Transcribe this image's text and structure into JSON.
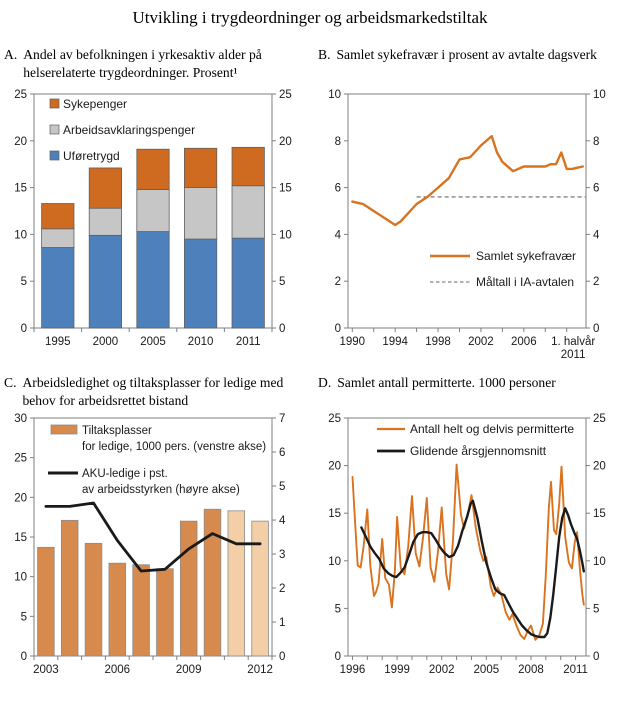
{
  "main_title": "Utvikling i trygdeordninger og arbeidsmarkedstiltak",
  "colors": {
    "orange": "#CF6B21",
    "gray": "#C6C6C6",
    "blue": "#4E80BC",
    "orange_line": "#D9731F",
    "bar_dark": "#D68A4D",
    "bar_light": "#F2CFA6",
    "black": "#1A1A1A",
    "dashed": "#666666",
    "axis": "#7F7F7F",
    "text": "#1A1A1A"
  },
  "chart_data": [
    {
      "id": "A",
      "panel_label": "A.",
      "title": "Andel av befolkningen i yrkesaktiv alder på helserelaterte trygdeordninger. Prosent¹",
      "type": "bar",
      "stacked": true,
      "categories": [
        "1995",
        "2000",
        "2005",
        "2010",
        "2011"
      ],
      "series": [
        {
          "name": "Uføretrygd",
          "color_key": "blue",
          "values": [
            8.6,
            9.9,
            10.3,
            9.5,
            9.6
          ]
        },
        {
          "name": "Arbeidsavklaringspenger",
          "color_key": "gray",
          "values": [
            2.0,
            2.9,
            4.5,
            5.5,
            5.6
          ]
        },
        {
          "name": "Sykepenger",
          "color_key": "orange",
          "values": [
            2.7,
            4.3,
            4.3,
            4.2,
            4.1
          ]
        }
      ],
      "legend": [
        {
          "label": "Sykepenger",
          "color_key": "orange"
        },
        {
          "label": "Arbeidsavklaringspenger",
          "color_key": "gray"
        },
        {
          "label": "Uføretrygd",
          "color_key": "blue"
        }
      ],
      "ylim": [
        0,
        25
      ],
      "yticks": [
        0,
        5,
        10,
        15,
        20,
        25
      ],
      "grid": false,
      "legend_position": "top-left-inside"
    },
    {
      "id": "B",
      "panel_label": "B.",
      "title": "Samlet sykefravær i prosent av avtalte dagsverk",
      "type": "line",
      "xlim": [
        1989.6,
        2011.8
      ],
      "ylim": [
        0,
        10
      ],
      "yticks": [
        0,
        2,
        4,
        6,
        8,
        10
      ],
      "xticks_minor": [
        1990,
        1992,
        1994,
        1996,
        1998,
        2000,
        2002,
        2004,
        2006,
        2008,
        2010
      ],
      "xtick_labels": [
        {
          "x": 1990,
          "lines": [
            "1990"
          ]
        },
        {
          "x": 1994,
          "lines": [
            "1994"
          ]
        },
        {
          "x": 1998,
          "lines": [
            "1998"
          ]
        },
        {
          "x": 2002,
          "lines": [
            "2002"
          ]
        },
        {
          "x": 2006,
          "lines": [
            "2006"
          ]
        },
        {
          "x": 2010.6,
          "lines": [
            "1. halvår",
            "2011"
          ]
        }
      ],
      "series": [
        {
          "name": "Samlet sykefravær",
          "color_key": "orange_line",
          "style": "solid",
          "points": [
            [
              1990,
              5.4
            ],
            [
              1990.5,
              5.35
            ],
            [
              1991,
              5.3
            ],
            [
              1992,
              5.0
            ],
            [
              1993,
              4.7
            ],
            [
              1994,
              4.4
            ],
            [
              1994.5,
              4.55
            ],
            [
              1995,
              4.8
            ],
            [
              1996,
              5.3
            ],
            [
              1997,
              5.6
            ],
            [
              1998,
              6.0
            ],
            [
              1999,
              6.4
            ],
            [
              2000,
              7.2
            ],
            [
              2000.5,
              7.25
            ],
            [
              2001,
              7.3
            ],
            [
              2002,
              7.8
            ],
            [
              2003,
              8.2
            ],
            [
              2003.5,
              7.5
            ],
            [
              2004,
              7.1
            ],
            [
              2005,
              6.7
            ],
            [
              2006,
              6.9
            ],
            [
              2007,
              6.9
            ],
            [
              2008,
              6.9
            ],
            [
              2008.5,
              7.0
            ],
            [
              2009,
              7.0
            ],
            [
              2009.5,
              7.5
            ],
            [
              2010,
              6.8
            ],
            [
              2010.5,
              6.8
            ],
            [
              2011,
              6.85
            ],
            [
              2011.5,
              6.9
            ]
          ]
        }
      ],
      "target_line": {
        "name": "Måltall i IA-avtalen",
        "value": 5.6,
        "x_start": 1996,
        "color_key": "dashed",
        "style": "dashed"
      },
      "grid": false,
      "legend_position": "center-inside"
    },
    {
      "id": "C",
      "panel_label": "C.",
      "title": "Arbeidsledighet og tiltaksplasser for ledige med behov for arbeidsrettet bistand",
      "type": "bar+line",
      "categories": [
        "2003",
        "2004",
        "2005",
        "2006",
        "2007",
        "2008",
        "2009",
        "2010",
        "2011",
        "2012"
      ],
      "bars": {
        "name": "Tiltaksplasser for ledige, 1000 pers. (venstre akse)",
        "legend_lines": [
          "Tiltaksplasser",
          "for ledige, 1000 pers. (venstre akse)"
        ],
        "values": [
          13.7,
          17.1,
          14.2,
          11.7,
          11.5,
          11.0,
          17.0,
          18.5,
          18.3,
          17.0
        ],
        "projection_from_index": 8
      },
      "line": {
        "name": "AKU-ledige i pst. av arbeidsstyrken (høyre akse)",
        "legend_lines": [
          "AKU-ledige i pst.",
          "av arbeidsstyrken (høyre akse)"
        ],
        "values": [
          4.4,
          4.4,
          4.5,
          3.4,
          2.5,
          2.55,
          3.15,
          3.6,
          3.3,
          3.3
        ]
      },
      "ylim_left": [
        0,
        30
      ],
      "yticks_left": [
        0,
        5,
        10,
        15,
        20,
        25,
        30
      ],
      "ylim_right": [
        0,
        7
      ],
      "yticks_right": [
        0,
        1,
        2,
        3,
        4,
        5,
        6,
        7
      ],
      "xtick_labels": [
        {
          "index": 0,
          "label": "2003"
        },
        {
          "index": 3,
          "label": "2006"
        },
        {
          "index": 6,
          "label": "2009"
        },
        {
          "index": 9,
          "label": "2012"
        }
      ],
      "grid": false,
      "legend_position": "top-left-inside"
    },
    {
      "id": "D",
      "panel_label": "D.",
      "title": "Samlet antall permitterte. 1000 personer",
      "type": "line",
      "xlim": [
        1995.7,
        2011.7
      ],
      "ylim": [
        0,
        25
      ],
      "yticks": [
        0,
        5,
        10,
        15,
        20,
        25
      ],
      "xticks_minor": [
        1996,
        1997,
        1998,
        1999,
        2000,
        2001,
        2002,
        2003,
        2004,
        2005,
        2006,
        2007,
        2008,
        2009,
        2010,
        2011
      ],
      "xtick_labels": [
        {
          "x": 1996,
          "lines": [
            "1996"
          ]
        },
        {
          "x": 1999,
          "lines": [
            "1999"
          ]
        },
        {
          "x": 2002,
          "lines": [
            "2002"
          ]
        },
        {
          "x": 2005,
          "lines": [
            "2005"
          ]
        },
        {
          "x": 2008,
          "lines": [
            "2008"
          ]
        },
        {
          "x": 2011,
          "lines": [
            "2011"
          ]
        }
      ],
      "series": [
        {
          "name": "Antall helt og delvis permitterte",
          "color_key": "orange_line",
          "style": "solid",
          "points": [
            [
              1996.0,
              18.8
            ],
            [
              1996.2,
              13.5
            ],
            [
              1996.35,
              9.5
            ],
            [
              1996.55,
              9.3
            ],
            [
              1996.75,
              11.5
            ],
            [
              1996.9,
              14.0
            ],
            [
              1997.0,
              15.4
            ],
            [
              1997.2,
              9.5
            ],
            [
              1997.45,
              6.3
            ],
            [
              1997.6,
              6.8
            ],
            [
              1997.75,
              7.6
            ],
            [
              1998.0,
              12.3
            ],
            [
              1998.2,
              8.2
            ],
            [
              1998.45,
              7.5
            ],
            [
              1998.65,
              5.1
            ],
            [
              1998.85,
              9.0
            ],
            [
              1999.0,
              14.6
            ],
            [
              1999.25,
              9.2
            ],
            [
              1999.5,
              8.6
            ],
            [
              1999.75,
              11.5
            ],
            [
              2000.0,
              16.8
            ],
            [
              2000.25,
              10.8
            ],
            [
              2000.5,
              9.4
            ],
            [
              2000.75,
              12.5
            ],
            [
              2001.0,
              16.6
            ],
            [
              2001.25,
              9.3
            ],
            [
              2001.5,
              7.8
            ],
            [
              2001.75,
              11.0
            ],
            [
              2002.0,
              15.6
            ],
            [
              2002.3,
              8.6
            ],
            [
              2002.5,
              7.0
            ],
            [
              2002.75,
              12.0
            ],
            [
              2003.0,
              20.1
            ],
            [
              2003.3,
              14.8
            ],
            [
              2003.5,
              13.4
            ],
            [
              2003.75,
              14.8
            ],
            [
              2004.0,
              16.9
            ],
            [
              2004.3,
              13.4
            ],
            [
              2004.6,
              11.0
            ],
            [
              2004.8,
              10.0
            ],
            [
              2005.0,
              10.4
            ],
            [
              2005.3,
              7.3
            ],
            [
              2005.5,
              6.3
            ],
            [
              2005.75,
              7.2
            ],
            [
              2006.0,
              6.5
            ],
            [
              2006.3,
              4.6
            ],
            [
              2006.55,
              3.8
            ],
            [
              2006.75,
              4.4
            ],
            [
              2007.0,
              3.3
            ],
            [
              2007.3,
              2.2
            ],
            [
              2007.55,
              1.8
            ],
            [
              2007.8,
              2.7
            ],
            [
              2008.0,
              3.2
            ],
            [
              2008.3,
              1.7
            ],
            [
              2008.55,
              2.1
            ],
            [
              2008.8,
              3.4
            ],
            [
              2009.0,
              8.5
            ],
            [
              2009.2,
              15.5
            ],
            [
              2009.35,
              18.3
            ],
            [
              2009.55,
              13.2
            ],
            [
              2009.7,
              12.8
            ],
            [
              2009.9,
              16.0
            ],
            [
              2010.05,
              19.9
            ],
            [
              2010.3,
              12.5
            ],
            [
              2010.55,
              9.8
            ],
            [
              2010.75,
              9.2
            ],
            [
              2010.95,
              12.0
            ],
            [
              2011.1,
              13.0
            ],
            [
              2011.3,
              9.0
            ],
            [
              2011.45,
              6.5
            ],
            [
              2011.55,
              5.4
            ]
          ]
        },
        {
          "name": "Glidende årsgjennomsnitt",
          "color_key": "black",
          "style": "solid",
          "points": [
            [
              1996.6,
              13.5
            ],
            [
              1996.9,
              12.5
            ],
            [
              1997.2,
              11.5
            ],
            [
              1997.5,
              10.8
            ],
            [
              1997.8,
              10.2
            ],
            [
              1998.1,
              9.2
            ],
            [
              1998.4,
              8.7
            ],
            [
              1998.7,
              8.4
            ],
            [
              1998.95,
              8.3
            ],
            [
              1999.2,
              8.7
            ],
            [
              1999.5,
              9.3
            ],
            [
              1999.8,
              10.6
            ],
            [
              2000.1,
              12.0
            ],
            [
              2000.4,
              12.8
            ],
            [
              2000.7,
              13.0
            ],
            [
              2001.0,
              13.0
            ],
            [
              2001.3,
              12.9
            ],
            [
              2001.6,
              12.2
            ],
            [
              2001.9,
              11.4
            ],
            [
              2002.2,
              10.8
            ],
            [
              2002.5,
              10.4
            ],
            [
              2002.8,
              10.6
            ],
            [
              2003.1,
              11.6
            ],
            [
              2003.4,
              13.2
            ],
            [
              2003.7,
              14.6
            ],
            [
              2003.95,
              16.0
            ],
            [
              2004.1,
              16.3
            ],
            [
              2004.4,
              14.5
            ],
            [
              2004.7,
              12.0
            ],
            [
              2005.0,
              9.8
            ],
            [
              2005.3,
              8.3
            ],
            [
              2005.6,
              7.0
            ],
            [
              2005.9,
              6.6
            ],
            [
              2006.2,
              6.4
            ],
            [
              2006.5,
              5.5
            ],
            [
              2006.8,
              4.6
            ],
            [
              2007.1,
              3.9
            ],
            [
              2007.4,
              3.2
            ],
            [
              2007.7,
              2.7
            ],
            [
              2008.0,
              2.3
            ],
            [
              2008.3,
              2.1
            ],
            [
              2008.6,
              2.0
            ],
            [
              2008.9,
              2.0
            ],
            [
              2009.1,
              2.4
            ],
            [
              2009.3,
              4.0
            ],
            [
              2009.5,
              6.5
            ],
            [
              2009.7,
              9.5
            ],
            [
              2009.9,
              12.5
            ],
            [
              2010.1,
              14.5
            ],
            [
              2010.3,
              15.5
            ],
            [
              2010.5,
              14.8
            ],
            [
              2010.7,
              13.8
            ],
            [
              2010.9,
              13.0
            ],
            [
              2011.1,
              12.3
            ],
            [
              2011.3,
              11.0
            ],
            [
              2011.45,
              9.8
            ],
            [
              2011.55,
              8.9
            ]
          ]
        }
      ],
      "grid": false,
      "legend_position": "top-inside"
    }
  ]
}
